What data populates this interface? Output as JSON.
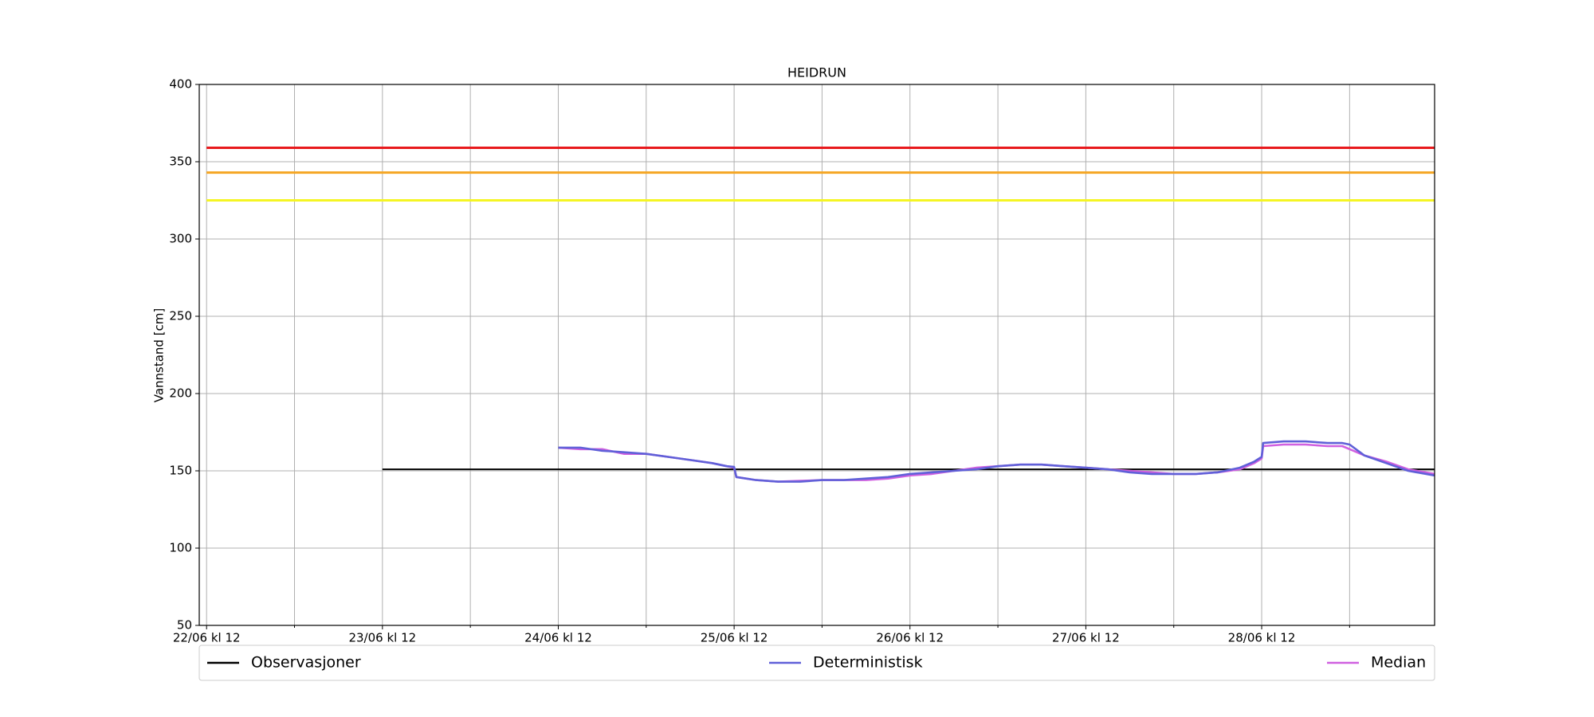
{
  "chart_data": {
    "type": "line",
    "title": "HEIDRUN",
    "y_label": "Vannstand [cm]",
    "xlim": [
      -1,
      167.6
    ],
    "xticks": [
      {
        "value": 0,
        "label": "22/06 kl 12"
      },
      {
        "value": 24,
        "label": "23/06 kl 12"
      },
      {
        "value": 48,
        "label": "24/06 kl 12"
      },
      {
        "value": 72,
        "label": "25/06 kl 12"
      },
      {
        "value": 96,
        "label": "26/06 kl 12"
      },
      {
        "value": 120,
        "label": "27/06 kl 12"
      },
      {
        "value": 144,
        "label": "28/06 kl 12"
      }
    ],
    "xticks_minor": [
      12,
      36,
      60,
      84,
      108,
      132,
      156
    ],
    "ylim": [
      50,
      400
    ],
    "yticks": [
      50,
      100,
      150,
      200,
      250,
      300,
      350,
      400
    ],
    "grid": true,
    "legend": "bottom",
    "hlines": [
      {
        "value": 359,
        "color": "#e8191c"
      },
      {
        "value": 343,
        "color": "#f5a623"
      },
      {
        "value": 325,
        "color": "#f5f523"
      }
    ],
    "series": [
      {
        "name": "Observasjoner",
        "color": "#000000",
        "x": [
          24,
          167.6
        ],
        "values": [
          151,
          151
        ]
      },
      {
        "name": "Median",
        "color": "#d060e0",
        "x": [
          48,
          51,
          54,
          57,
          60,
          63,
          66,
          69,
          71,
          72,
          72.3,
          75,
          78,
          81,
          84,
          87,
          90,
          93,
          96,
          99,
          102,
          105,
          108,
          111,
          114,
          117,
          120,
          123,
          126,
          129,
          132,
          135,
          138,
          141,
          143,
          144,
          144.2,
          147,
          150,
          153,
          155,
          156,
          158,
          161,
          164,
          167.6
        ],
        "values": [
          165,
          164,
          164,
          161,
          161,
          159,
          157,
          155,
          153,
          152,
          146,
          144,
          143,
          143.5,
          144,
          144,
          144,
          145,
          147,
          148,
          150,
          152,
          153,
          154,
          154,
          153,
          152,
          151,
          150,
          149,
          148,
          148,
          149,
          151,
          155,
          158,
          166,
          167,
          167,
          166,
          166,
          164,
          160,
          156,
          151,
          148
        ]
      },
      {
        "name": "Deterministisk",
        "color": "#6060d8",
        "x": [
          48,
          51,
          54,
          57,
          60,
          63,
          66,
          69,
          71,
          72,
          72.3,
          75,
          78,
          81,
          84,
          87,
          90,
          93,
          96,
          99,
          102,
          105,
          108,
          111,
          114,
          117,
          120,
          123,
          126,
          129,
          132,
          135,
          138,
          141,
          143,
          144,
          144.2,
          147,
          150,
          153,
          155,
          156,
          158,
          161,
          164,
          167.6
        ],
        "values": [
          165,
          165,
          163,
          162,
          161,
          159,
          157,
          155,
          153,
          152.5,
          146,
          144,
          143,
          143,
          144,
          144,
          145,
          146,
          148,
          149,
          150,
          151,
          153,
          154,
          154,
          153,
          152,
          151,
          149,
          148,
          148,
          148,
          149,
          152,
          156,
          159,
          168,
          169,
          169,
          168,
          168,
          167,
          160,
          155,
          150,
          147
        ]
      }
    ]
  }
}
